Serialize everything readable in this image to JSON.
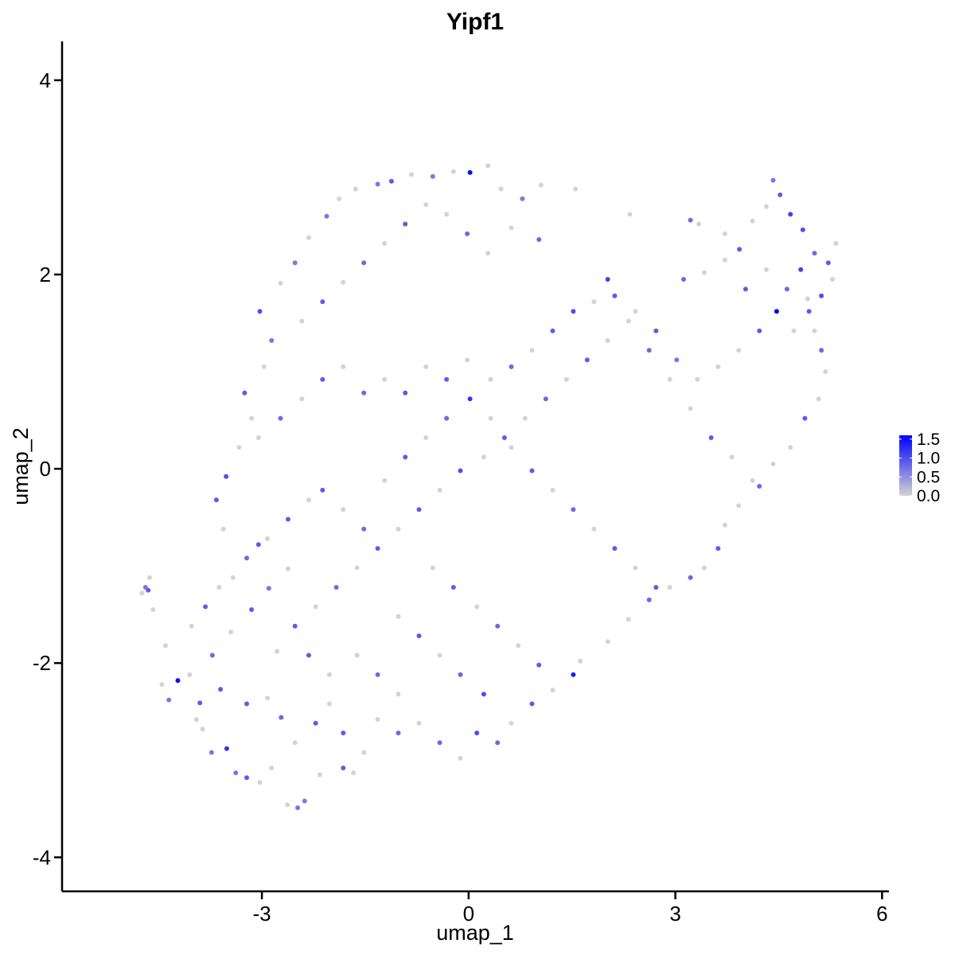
{
  "chart_data": {
    "type": "scatter",
    "title": "Yipf1",
    "xlabel": "umap_1",
    "ylabel": "umap_2",
    "xlim": [
      -5.9,
      6.1
    ],
    "ylim": [
      -4.35,
      4.4
    ],
    "x_ticks": [
      -3,
      0,
      3,
      6
    ],
    "x_tick_labels": [
      "-3",
      "0",
      "3",
      "6"
    ],
    "y_ticks": [
      -4,
      -2,
      0,
      2,
      4
    ],
    "y_tick_labels": [
      "-4",
      "-2",
      "0",
      "2",
      "4"
    ],
    "grid": false,
    "colorbar": {
      "min": 0.0,
      "max": 1.6,
      "low_color": "#d3d3d3",
      "high_color": "#0000ff",
      "ticks": [
        0.0,
        0.5,
        1.0,
        1.5
      ],
      "tick_labels": [
        "0.0",
        "0.5",
        "1.0",
        "1.5"
      ],
      "placement": "right"
    },
    "points": [
      [
        -4.74,
        -1.28,
        0.0
      ],
      [
        -4.63,
        -1.12,
        0.0
      ],
      [
        -4.69,
        -1.22,
        0.7
      ],
      [
        -4.65,
        -1.25,
        0.9
      ],
      [
        -4.58,
        -1.45,
        0.0
      ],
      [
        -4.4,
        -1.82,
        0.0
      ],
      [
        -4.22,
        -2.18,
        1.5
      ],
      [
        -4.05,
        -2.12,
        0.0
      ],
      [
        -3.95,
        -2.58,
        0.0
      ],
      [
        -3.86,
        -2.68,
        0.0
      ],
      [
        -3.73,
        -2.92,
        0.7
      ],
      [
        -3.6,
        -2.27,
        0.9
      ],
      [
        -3.51,
        -2.88,
        1.2
      ],
      [
        -3.38,
        -3.13,
        0.7
      ],
      [
        -3.22,
        -3.18,
        0.9
      ],
      [
        -3.03,
        -3.23,
        0.0
      ],
      [
        -2.86,
        -3.08,
        0.0
      ],
      [
        -2.63,
        -3.46,
        0.0
      ],
      [
        -2.48,
        -3.49,
        0.7
      ],
      [
        -2.38,
        -3.42,
        0.7
      ],
      [
        -2.16,
        -3.15,
        0.0
      ],
      [
        -1.82,
        -3.08,
        0.9
      ],
      [
        -1.67,
        -3.13,
        0.0
      ],
      [
        -4.35,
        -2.38,
        0.7
      ],
      [
        -4.45,
        -2.22,
        0.0
      ],
      [
        -3.9,
        -2.41,
        0.9
      ],
      [
        -3.72,
        -1.92,
        0.8
      ],
      [
        -3.45,
        -1.68,
        0.0
      ],
      [
        -3.15,
        -1.45,
        0.9
      ],
      [
        -2.9,
        -1.23,
        0.7
      ],
      [
        -2.62,
        -1.03,
        0.0
      ],
      [
        -3.05,
        -0.78,
        0.9
      ],
      [
        -3.56,
        -0.62,
        0.0
      ],
      [
        -3.66,
        -0.32,
        0.9
      ],
      [
        -3.52,
        -0.08,
        1.0
      ],
      [
        -3.33,
        0.22,
        0.0
      ],
      [
        -3.15,
        0.52,
        0.0
      ],
      [
        -3.25,
        0.78,
        0.9
      ],
      [
        -2.97,
        1.05,
        0.0
      ],
      [
        -2.86,
        1.32,
        0.7
      ],
      [
        -3.03,
        1.62,
        1.0
      ],
      [
        -2.73,
        1.91,
        0.0
      ],
      [
        -2.52,
        2.12,
        0.7
      ],
      [
        -2.32,
        2.38,
        0.0
      ],
      [
        -2.06,
        2.6,
        0.7
      ],
      [
        -1.88,
        2.78,
        0.0
      ],
      [
        -1.64,
        2.88,
        0.0
      ],
      [
        -1.32,
        2.93,
        0.7
      ],
      [
        -1.12,
        2.96,
        0.9
      ],
      [
        -0.83,
        3.03,
        0.0
      ],
      [
        -0.52,
        3.01,
        0.7
      ],
      [
        -0.22,
        3.06,
        0.0
      ],
      [
        0.02,
        3.05,
        1.5
      ],
      [
        0.28,
        3.12,
        0.0
      ],
      [
        0.47,
        2.88,
        0.0
      ],
      [
        0.78,
        2.78,
        0.7
      ],
      [
        1.05,
        2.92,
        0.0
      ],
      [
        1.55,
        2.88,
        0.0
      ],
      [
        1.02,
        2.36,
        0.8
      ],
      [
        0.62,
        2.48,
        0.0
      ],
      [
        2.34,
        2.62,
        0.0
      ],
      [
        3.22,
        2.56,
        0.8
      ],
      [
        3.34,
        2.52,
        0.0
      ],
      [
        3.72,
        2.42,
        0.0
      ],
      [
        3.93,
        2.26,
        0.9
      ],
      [
        4.12,
        2.55,
        0.0
      ],
      [
        4.32,
        2.7,
        0.0
      ],
      [
        4.42,
        2.97,
        0.7
      ],
      [
        4.52,
        2.82,
        0.9
      ],
      [
        4.67,
        2.62,
        1.1
      ],
      [
        4.85,
        2.46,
        1.0
      ],
      [
        5.02,
        2.22,
        0.8
      ],
      [
        5.22,
        2.12,
        0.9
      ],
      [
        5.33,
        2.32,
        0.0
      ],
      [
        5.28,
        1.95,
        0.0
      ],
      [
        5.12,
        1.78,
        1.0
      ],
      [
        4.94,
        1.62,
        0.9
      ],
      [
        4.72,
        1.42,
        0.0
      ],
      [
        4.47,
        1.62,
        1.6
      ],
      [
        4.22,
        1.42,
        0.9
      ],
      [
        3.92,
        1.22,
        0.0
      ],
      [
        3.62,
        1.05,
        0.0
      ],
      [
        3.32,
        0.92,
        0.0
      ],
      [
        3.02,
        1.12,
        0.7
      ],
      [
        2.72,
        1.42,
        0.9
      ],
      [
        2.42,
        1.62,
        0.0
      ],
      [
        2.12,
        1.78,
        0.9
      ],
      [
        2.02,
        1.95,
        1.1
      ],
      [
        1.82,
        1.72,
        0.0
      ],
      [
        1.52,
        1.62,
        1.0
      ],
      [
        1.22,
        1.42,
        0.9
      ],
      [
        0.92,
        1.22,
        0.0
      ],
      [
        0.62,
        1.05,
        0.8
      ],
      [
        0.32,
        0.92,
        0.0
      ],
      [
        -0.02,
        1.12,
        0.0
      ],
      [
        -0.32,
        0.92,
        0.9
      ],
      [
        -0.62,
        1.05,
        0.0
      ],
      [
        -0.92,
        0.78,
        0.9
      ],
      [
        -1.22,
        0.92,
        0.0
      ],
      [
        -1.52,
        0.78,
        0.8
      ],
      [
        -1.82,
        1.05,
        0.0
      ],
      [
        -2.12,
        0.92,
        0.9
      ],
      [
        -2.42,
        0.72,
        0.0
      ],
      [
        -2.73,
        0.52,
        0.8
      ],
      [
        -3.05,
        0.32,
        0.0
      ],
      [
        5.18,
        1.0,
        0.0
      ],
      [
        5.08,
        0.72,
        0.0
      ],
      [
        4.88,
        0.52,
        0.9
      ],
      [
        4.67,
        0.22,
        0.0
      ],
      [
        4.42,
        0.05,
        0.0
      ],
      [
        4.22,
        -0.18,
        0.8
      ],
      [
        3.92,
        -0.38,
        0.0
      ],
      [
        3.72,
        -0.58,
        0.0
      ],
      [
        3.62,
        -0.82,
        0.9
      ],
      [
        3.42,
        -1.02,
        0.0
      ],
      [
        3.22,
        -1.12,
        0.8
      ],
      [
        2.92,
        -1.22,
        0.0
      ],
      [
        2.62,
        -1.35,
        0.8
      ],
      [
        2.32,
        -1.55,
        0.0
      ],
      [
        2.02,
        -1.78,
        0.0
      ],
      [
        1.62,
        -1.98,
        0.0
      ],
      [
        1.52,
        -2.12,
        1.4
      ],
      [
        1.22,
        -2.28,
        0.0
      ],
      [
        0.92,
        -2.42,
        0.9
      ],
      [
        0.62,
        -2.62,
        0.0
      ],
      [
        0.42,
        -2.82,
        0.8
      ],
      [
        0.12,
        -2.72,
        1.0
      ],
      [
        -0.12,
        -2.98,
        0.0
      ],
      [
        -0.42,
        -2.82,
        0.8
      ],
      [
        -0.72,
        -2.62,
        0.0
      ],
      [
        -1.02,
        -2.72,
        0.8
      ],
      [
        -1.32,
        -2.58,
        0.0
      ],
      [
        -1.52,
        -2.92,
        0.0
      ],
      [
        -1.82,
        -2.72,
        0.9
      ],
      [
        -2.02,
        -2.42,
        0.0
      ],
      [
        -2.22,
        -2.62,
        0.9
      ],
      [
        -2.52,
        -2.82,
        0.0
      ],
      [
        -2.72,
        -2.56,
        0.8
      ],
      [
        -2.92,
        -2.36,
        0.0
      ],
      [
        -3.22,
        -2.42,
        0.9
      ],
      [
        -2.78,
        -1.88,
        0.0
      ],
      [
        -2.52,
        -1.62,
        0.9
      ],
      [
        -2.22,
        -1.42,
        0.0
      ],
      [
        -1.92,
        -1.22,
        0.8
      ],
      [
        -1.62,
        -1.02,
        0.0
      ],
      [
        -1.32,
        -0.82,
        0.9
      ],
      [
        -1.02,
        -0.62,
        0.0
      ],
      [
        -0.72,
        -0.42,
        0.9
      ],
      [
        -0.42,
        -0.22,
        0.0
      ],
      [
        -0.12,
        -0.02,
        1.0
      ],
      [
        0.22,
        0.12,
        0.0
      ],
      [
        0.52,
        0.32,
        0.9
      ],
      [
        0.82,
        0.52,
        0.0
      ],
      [
        1.12,
        0.72,
        0.8
      ],
      [
        1.42,
        0.92,
        0.0
      ],
      [
        1.72,
        1.12,
        0.9
      ],
      [
        2.02,
        1.32,
        0.0
      ],
      [
        2.32,
        1.52,
        0.0
      ],
      [
        2.62,
        1.22,
        0.8
      ],
      [
        2.92,
        0.92,
        0.0
      ],
      [
        3.22,
        0.62,
        0.0
      ],
      [
        3.52,
        0.32,
        0.9
      ],
      [
        3.82,
        0.12,
        0.0
      ],
      [
        4.12,
        -0.12,
        0.0
      ],
      [
        -2.12,
        -0.22,
        0.9
      ],
      [
        -1.82,
        -0.42,
        0.0
      ],
      [
        -1.52,
        -0.62,
        0.8
      ],
      [
        -1.22,
        -0.12,
        0.0
      ],
      [
        -0.92,
        0.12,
        0.9
      ],
      [
        -0.62,
        0.32,
        0.0
      ],
      [
        -0.32,
        0.52,
        0.8
      ],
      [
        0.02,
        0.72,
        1.2
      ],
      [
        0.32,
        0.52,
        0.0
      ],
      [
        0.62,
        0.22,
        0.0
      ],
      [
        0.92,
        -0.02,
        0.9
      ],
      [
        1.22,
        -0.22,
        0.0
      ],
      [
        1.52,
        -0.42,
        0.8
      ],
      [
        1.82,
        -0.62,
        0.0
      ],
      [
        2.12,
        -0.82,
        0.9
      ],
      [
        2.42,
        -1.02,
        0.0
      ],
      [
        2.72,
        -1.22,
        0.9
      ],
      [
        -0.52,
        -1.02,
        0.0
      ],
      [
        -0.22,
        -1.22,
        0.9
      ],
      [
        0.12,
        -1.42,
        0.0
      ],
      [
        0.42,
        -1.62,
        0.8
      ],
      [
        0.72,
        -1.82,
        0.0
      ],
      [
        1.02,
        -2.02,
        0.9
      ],
      [
        -2.42,
        1.52,
        0.0
      ],
      [
        -2.12,
        1.72,
        0.9
      ],
      [
        -1.82,
        1.92,
        0.0
      ],
      [
        -1.52,
        2.12,
        0.8
      ],
      [
        -1.22,
        2.32,
        0.0
      ],
      [
        -0.92,
        2.52,
        0.9
      ],
      [
        -0.62,
        2.72,
        0.0
      ],
      [
        -0.32,
        2.62,
        0.0
      ],
      [
        -0.02,
        2.42,
        0.8
      ],
      [
        0.28,
        2.22,
        0.0
      ],
      [
        -3.42,
        -1.12,
        0.0
      ],
      [
        -3.22,
        -0.92,
        0.8
      ],
      [
        -2.92,
        -0.72,
        0.0
      ],
      [
        -2.62,
        -0.52,
        0.9
      ],
      [
        -2.32,
        -0.32,
        0.0
      ],
      [
        -4.02,
        -1.62,
        0.0
      ],
      [
        -3.82,
        -1.42,
        0.9
      ],
      [
        -3.62,
        -1.22,
        0.0
      ],
      [
        3.12,
        1.95,
        0.8
      ],
      [
        3.42,
        2.02,
        0.0
      ],
      [
        3.72,
        2.15,
        0.0
      ],
      [
        4.02,
        1.85,
        0.9
      ],
      [
        4.32,
        2.05,
        0.0
      ],
      [
        4.62,
        1.85,
        0.8
      ],
      [
        4.82,
        2.05,
        1.1
      ],
      [
        4.92,
        1.75,
        0.0
      ],
      [
        5.02,
        1.42,
        0.0
      ],
      [
        5.12,
        1.22,
        0.8
      ],
      [
        -1.02,
        -1.52,
        0.0
      ],
      [
        -0.72,
        -1.72,
        0.9
      ],
      [
        -0.42,
        -1.92,
        0.0
      ],
      [
        -0.12,
        -2.12,
        0.8
      ],
      [
        0.22,
        -2.32,
        1.0
      ],
      [
        -1.62,
        -1.92,
        0.0
      ],
      [
        -1.32,
        -2.12,
        0.8
      ],
      [
        -1.02,
        -2.32,
        0.0
      ],
      [
        -2.32,
        -1.92,
        0.9
      ],
      [
        -2.02,
        -2.12,
        0.0
      ]
    ]
  }
}
